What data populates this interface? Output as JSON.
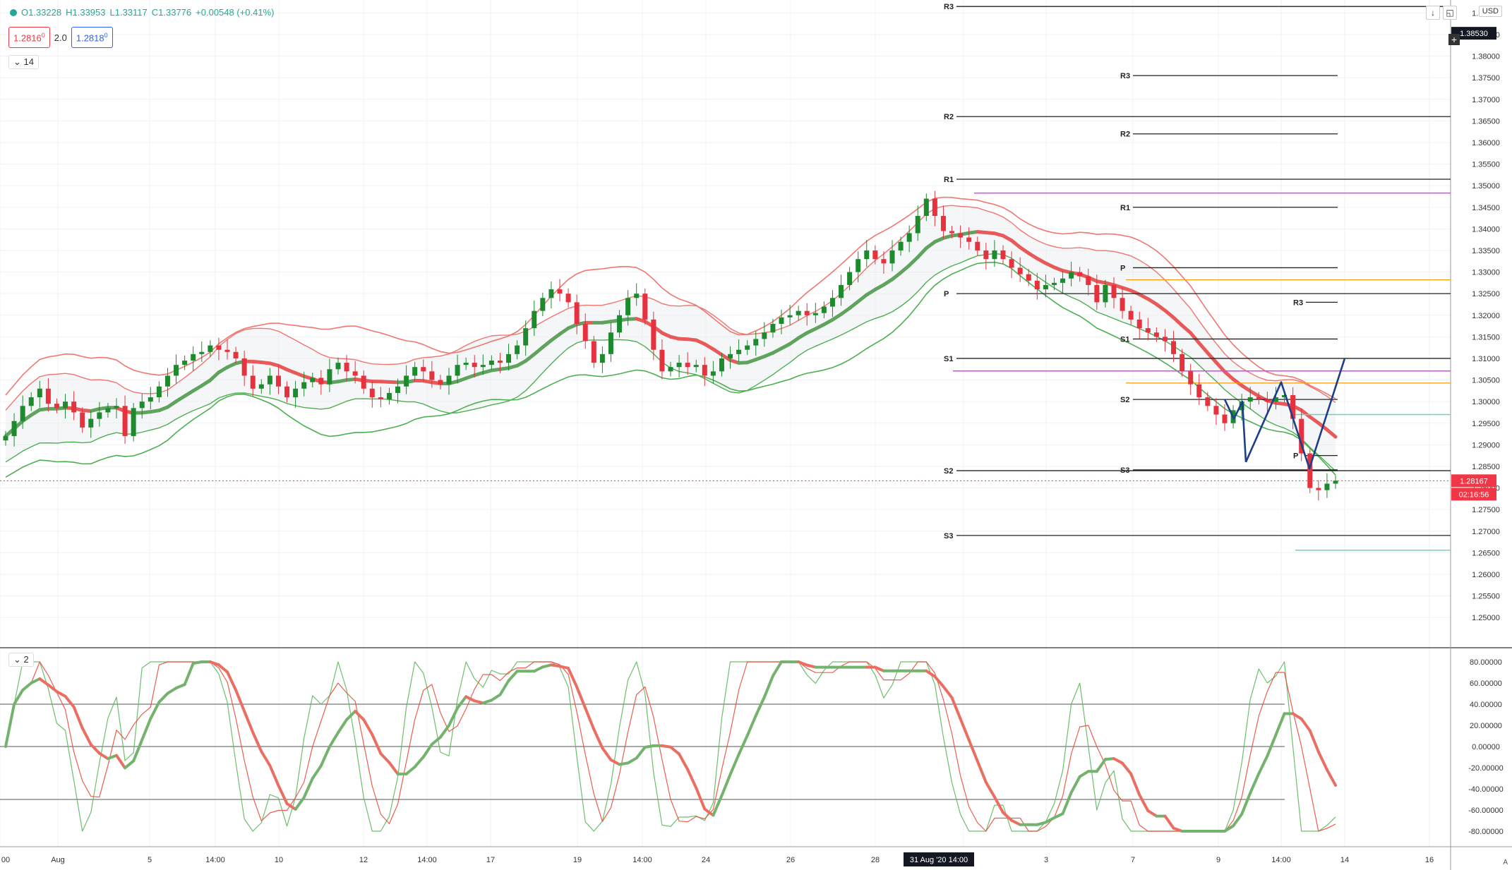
{
  "legend": {
    "open": "O1.33228",
    "high": "H1.33953",
    "low": "L1.33117",
    "close": "C1.33776",
    "change": "+0.00548 (+0.41%)"
  },
  "bid_ask": {
    "bid": "1.2816",
    "bid_sup": "0",
    "spread": "2.0",
    "ask": "1.2818",
    "ask_sup": "0"
  },
  "indicator_label": "14",
  "osc_label": "2",
  "currency": "USD",
  "auto_label": "A",
  "down_arrow": "↓",
  "toggle_icon": "◱",
  "colors": {
    "up": "#26a69a",
    "bull_body": "#1e8a2e",
    "bear_body": "#e5323e",
    "upper_band": "#f0766f",
    "lower_band": "#4caf50",
    "basis_red": "#e85a5a",
    "basis_green": "#5fa35f",
    "zigzag": "#1d3f8a",
    "last_price": "#f23645",
    "pivot_line": "#222222",
    "magenta": "#e040fb",
    "orange": "#ff9800",
    "mint": "#66d9a8"
  },
  "chart_data": {
    "type": "candlestick",
    "symbol_quote": "USD",
    "price_axis": {
      "min": 1.243,
      "max": 1.393,
      "ticks": [
        "1.25000",
        "1.25500",
        "1.26000",
        "1.26500",
        "1.27000",
        "1.27500",
        "1.28000",
        "1.28500",
        "1.29000",
        "1.29500",
        "1.30000",
        "1.30500",
        "1.31000",
        "1.31500",
        "1.32000",
        "1.32500",
        "1.33000",
        "1.33500",
        "1.34000",
        "1.34500",
        "1.35000",
        "1.35500",
        "1.36000",
        "1.36500",
        "1.37000",
        "1.37500",
        "1.38000",
        "1.38500",
        "1.39000"
      ]
    },
    "crosshair_price": "1.38530",
    "last_price": "1.28167",
    "countdown": "02:16:56",
    "time_axis": [
      "00",
      "Aug",
      "5",
      "14:00",
      "10",
      "12",
      "14:00",
      "17",
      "19",
      "14:00",
      "24",
      "26",
      "28",
      "3",
      "7",
      "9",
      "14:00",
      "14",
      "16"
    ],
    "crosshair_time": "31 Aug '20  14:00",
    "pivot_labels": [
      {
        "label": "R3",
        "price": 1.3915
      },
      {
        "label": "R2",
        "price": 1.366
      },
      {
        "label": "R1",
        "price": 1.3515
      },
      {
        "label": "P",
        "price": 1.325
      },
      {
        "label": "S1",
        "price": 1.31
      },
      {
        "label": "S2",
        "price": 1.284
      },
      {
        "label": "S3",
        "price": 1.269
      },
      {
        "label": "R3",
        "price": 1.3755
      },
      {
        "label": "R2",
        "price": 1.362
      },
      {
        "label": "R1",
        "price": 1.345
      },
      {
        "label": "P",
        "price": 1.331
      },
      {
        "label": "S1",
        "price": 1.3145
      },
      {
        "label": "S2",
        "price": 1.3005
      },
      {
        "label": "S3",
        "price": 1.2842
      },
      {
        "label": "R3",
        "price": 1.323
      },
      {
        "label": "P",
        "price": 1.2875
      }
    ],
    "closes": [
      1.292,
      1.2955,
      1.299,
      1.301,
      1.303,
      1.2995,
      1.2985,
      1.3,
      1.2975,
      1.294,
      1.296,
      1.2975,
      1.2985,
      1.299,
      1.292,
      1.2985,
      1.3,
      1.301,
      1.3035,
      1.306,
      1.3085,
      1.3095,
      1.311,
      1.3115,
      1.313,
      1.312,
      1.3115,
      1.31,
      1.306,
      1.303,
      1.304,
      1.306,
      1.3035,
      1.301,
      1.303,
      1.3045,
      1.3055,
      1.304,
      1.3075,
      1.309,
      1.307,
      1.306,
      1.303,
      1.301,
      1.3005,
      1.302,
      1.3035,
      1.306,
      1.308,
      1.307,
      1.305,
      1.304,
      1.306,
      1.3085,
      1.309,
      1.308,
      1.3085,
      1.3095,
      1.309,
      1.311,
      1.313,
      1.317,
      1.321,
      1.324,
      1.326,
      1.325,
      1.323,
      1.318,
      1.314,
      1.309,
      1.311,
      1.316,
      1.32,
      1.324,
      1.325,
      1.319,
      1.312,
      1.307,
      1.308,
      1.309,
      1.308,
      1.3085,
      1.306,
      1.307,
      1.31,
      1.311,
      1.312,
      1.313,
      1.3145,
      1.316,
      1.318,
      1.3195,
      1.32,
      1.321,
      1.32,
      1.3205,
      1.322,
      1.324,
      1.327,
      1.33,
      1.333,
      1.335,
      1.333,
      1.332,
      1.335,
      1.337,
      1.339,
      1.343,
      1.347,
      1.343,
      1.3395,
      1.339,
      1.338,
      1.337,
      1.335,
      1.333,
      1.335,
      1.333,
      1.331,
      1.3295,
      1.328,
      1.326,
      1.327,
      1.3275,
      1.3285,
      1.33,
      1.329,
      1.327,
      1.323,
      1.327,
      1.324,
      1.321,
      1.319,
      1.317,
      1.316,
      1.315,
      1.314,
      1.311,
      1.307,
      1.304,
      1.301,
      1.299,
      1.297,
      1.295,
      1.298,
      1.3,
      1.301,
      1.3005,
      1.3,
      1.301,
      1.3015,
      1.296,
      1.288,
      1.28,
      1.2795,
      1.281,
      1.2817
    ],
    "zigzag": [
      1.3005,
      1.296,
      1.3,
      1.286,
      1.3045,
      1.2845,
      1.31
    ],
    "oscillator": {
      "levels": [
        "80.00000",
        "60.00000",
        "40.00000",
        "20.00000",
        "0.00000",
        "-20.00000",
        "-40.00000",
        "-60.00000",
        "-80.00000"
      ],
      "min": -92,
      "max": 88,
      "bands": [
        40,
        0,
        -50
      ]
    }
  }
}
